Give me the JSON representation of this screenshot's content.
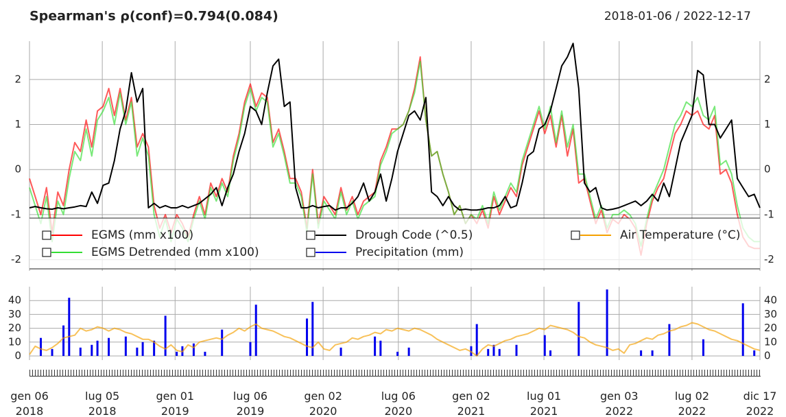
{
  "chart_data": [
    {
      "type": "line",
      "title": "Spearman's ρ(conf)=0.794(0.084)",
      "subtitle": "2018-01-06 / 2022-12-17",
      "x": [
        "2018-01-06",
        "2018-01-20",
        "2018-02-03",
        "2018-02-17",
        "2018-03-03",
        "2018-03-17",
        "2018-03-31",
        "2018-04-14",
        "2018-04-28",
        "2018-05-12",
        "2018-05-26",
        "2018-06-09",
        "2018-06-23",
        "2018-07-07",
        "2018-07-21",
        "2018-08-04",
        "2018-08-18",
        "2018-09-01",
        "2018-09-15",
        "2018-09-29",
        "2018-10-13",
        "2018-10-27",
        "2018-11-10",
        "2018-11-24",
        "2018-12-08",
        "2018-12-22",
        "2019-01-05",
        "2019-01-19",
        "2019-02-02",
        "2019-02-16",
        "2019-03-02",
        "2019-03-16",
        "2019-03-30",
        "2019-04-13",
        "2019-04-27",
        "2019-05-11",
        "2019-05-25",
        "2019-06-08",
        "2019-06-22",
        "2019-07-06",
        "2019-07-20",
        "2019-08-03",
        "2019-08-17",
        "2019-08-31",
        "2019-09-14",
        "2019-09-28",
        "2019-10-12",
        "2019-10-26",
        "2019-11-09",
        "2019-11-23",
        "2019-12-07",
        "2019-12-21",
        "2020-01-04",
        "2020-01-18",
        "2020-02-01",
        "2020-02-15",
        "2020-02-29",
        "2020-03-14",
        "2020-03-28",
        "2020-04-11",
        "2020-04-25",
        "2020-05-09",
        "2020-05-23",
        "2020-06-06",
        "2020-06-20",
        "2020-07-04",
        "2020-07-18",
        "2020-08-01",
        "2020-08-15",
        "2020-08-29",
        "2020-09-12",
        "2020-09-26",
        "2020-10-10",
        "2020-10-24",
        "2020-11-07",
        "2020-11-21",
        "2020-12-05",
        "2020-12-19",
        "2021-01-02",
        "2021-01-16",
        "2021-01-30",
        "2021-02-13",
        "2021-02-27",
        "2021-03-13",
        "2021-03-27",
        "2021-04-10",
        "2021-04-24",
        "2021-05-08",
        "2021-05-22",
        "2021-06-05",
        "2021-06-19",
        "2021-07-03",
        "2021-07-17",
        "2021-07-31",
        "2021-08-14",
        "2021-08-28",
        "2021-09-11",
        "2021-09-25",
        "2021-10-09",
        "2021-10-23",
        "2021-11-06",
        "2021-11-20",
        "2021-12-04",
        "2021-12-18",
        "2022-01-01",
        "2022-01-15",
        "2022-01-29",
        "2022-02-12",
        "2022-02-26",
        "2022-03-12",
        "2022-03-26",
        "2022-04-09",
        "2022-04-23",
        "2022-05-07",
        "2022-05-21",
        "2022-06-04",
        "2022-06-18",
        "2022-07-02",
        "2022-07-16",
        "2022-07-30",
        "2022-08-13",
        "2022-08-27",
        "2022-09-10",
        "2022-09-24",
        "2022-10-08",
        "2022-10-22",
        "2022-11-05",
        "2022-11-19",
        "2022-12-03",
        "2022-12-17"
      ],
      "xlim": [
        "2018-01-06",
        "2022-12-17"
      ],
      "ylim": [
        -2.25,
        2.85
      ],
      "yticks": [
        -2,
        -1,
        0,
        1,
        2
      ],
      "grid": true,
      "series": [
        {
          "name": "EGMS (mm x100)",
          "color": "#ff0000",
          "values": [
            -0.2,
            -0.6,
            -1.0,
            -0.4,
            -1.4,
            -0.5,
            -0.8,
            0.0,
            0.6,
            0.4,
            1.1,
            0.5,
            1.3,
            1.4,
            1.8,
            1.2,
            1.8,
            1.1,
            1.6,
            0.5,
            0.8,
            0.5,
            -0.8,
            -1.3,
            -1.0,
            -1.4,
            -1.0,
            -1.2,
            -1.5,
            -1.0,
            -0.6,
            -1.0,
            -0.3,
            -0.6,
            -0.2,
            -0.5,
            0.3,
            0.8,
            1.5,
            1.9,
            1.4,
            1.7,
            1.6,
            0.6,
            0.9,
            0.4,
            -0.2,
            -0.2,
            -0.5,
            -1.3,
            0.0,
            -1.2,
            -0.6,
            -0.8,
            -1.0,
            -0.4,
            -0.9,
            -0.6,
            -1.0,
            -0.7,
            -0.6,
            -0.5,
            0.2,
            0.5,
            0.9,
            0.9,
            1.0,
            1.3,
            1.8,
            2.5,
            1.1,
            0.3,
            0.4,
            -0.1,
            -0.5,
            -1.0,
            -0.8,
            -1.2,
            -1.0,
            -1.2,
            -0.9,
            -1.3,
            -0.6,
            -1.0,
            -0.7,
            -0.4,
            -0.6,
            0.1,
            0.5,
            0.9,
            1.3,
            0.8,
            1.2,
            0.5,
            1.2,
            0.3,
            0.9,
            -0.3,
            -0.2,
            -0.7,
            -1.2,
            -0.9,
            -1.4,
            -1.1,
            -1.2,
            -1.0,
            -1.1,
            -1.3,
            -1.9,
            -1.2,
            -0.7,
            -0.4,
            -0.2,
            0.3,
            0.8,
            1.0,
            1.3,
            1.2,
            1.3,
            1.0,
            0.9,
            1.2,
            -0.1,
            0.0,
            -0.3,
            -1.0,
            -1.5,
            -1.7,
            -1.75,
            -1.75
          ]
        },
        {
          "name": "EGMS Detrended (mm x100)",
          "color": "#33dd33",
          "values": [
            -0.4,
            -0.8,
            -1.2,
            -0.6,
            -1.6,
            -0.7,
            -1.0,
            -0.2,
            0.4,
            0.2,
            0.9,
            0.3,
            1.1,
            1.3,
            1.6,
            1.0,
            1.7,
            1.0,
            1.5,
            0.3,
            0.7,
            0.3,
            -1.0,
            -1.5,
            -1.1,
            -1.6,
            -1.1,
            -1.3,
            -1.6,
            -1.1,
            -0.7,
            -1.1,
            -0.4,
            -0.7,
            -0.3,
            -0.6,
            0.2,
            0.7,
            1.4,
            1.8,
            1.3,
            1.6,
            1.5,
            0.5,
            0.8,
            0.3,
            -0.3,
            -0.3,
            -0.6,
            -1.4,
            -0.1,
            -1.3,
            -0.7,
            -0.9,
            -1.1,
            -0.5,
            -1.0,
            -0.7,
            -1.1,
            -0.8,
            -0.7,
            -0.6,
            0.1,
            0.4,
            0.8,
            0.9,
            1.0,
            1.3,
            1.7,
            2.4,
            1.1,
            0.3,
            0.4,
            -0.1,
            -0.5,
            -1.0,
            -0.8,
            -1.2,
            -1.0,
            -1.1,
            -0.8,
            -1.2,
            -0.5,
            -0.9,
            -0.6,
            -0.3,
            -0.5,
            0.2,
            0.6,
            1.0,
            1.4,
            0.9,
            1.4,
            0.6,
            1.3,
            0.5,
            1.0,
            -0.1,
            -0.1,
            -0.6,
            -1.1,
            -0.8,
            -1.3,
            -1.0,
            -1.0,
            -0.9,
            -1.0,
            -1.2,
            -1.7,
            -1.1,
            -0.6,
            -0.3,
            0.0,
            0.5,
            1.0,
            1.2,
            1.5,
            1.4,
            1.6,
            1.2,
            1.1,
            1.4,
            0.1,
            0.2,
            -0.1,
            -0.8,
            -1.3,
            -1.5,
            -1.6,
            -1.6
          ]
        },
        {
          "name": "Drough Code (^0.5)",
          "color": "#000000",
          "values": [
            -0.85,
            -0.82,
            -0.85,
            -0.87,
            -0.88,
            -0.85,
            -0.87,
            -0.85,
            -0.83,
            -0.8,
            -0.82,
            -0.5,
            -0.75,
            -0.35,
            -0.3,
            0.2,
            0.9,
            1.3,
            2.15,
            1.5,
            1.8,
            -0.85,
            -0.75,
            -0.85,
            -0.8,
            -0.85,
            -0.85,
            -0.8,
            -0.85,
            -0.8,
            -0.75,
            -0.65,
            -0.55,
            -0.4,
            -0.8,
            -0.4,
            -0.1,
            0.4,
            0.8,
            1.4,
            1.3,
            1.0,
            1.7,
            2.3,
            2.45,
            1.4,
            1.5,
            -0.4,
            -0.85,
            -0.85,
            -0.8,
            -0.85,
            -0.82,
            -0.8,
            -0.9,
            -0.85,
            -0.85,
            -0.75,
            -0.6,
            -0.3,
            -0.7,
            -0.5,
            -0.1,
            -0.7,
            -0.2,
            0.4,
            0.8,
            1.2,
            1.3,
            1.1,
            1.6,
            -0.5,
            -0.6,
            -0.8,
            -0.6,
            -0.8,
            -0.9,
            -0.88,
            -0.9,
            -0.9,
            -0.88,
            -0.85,
            -0.85,
            -0.8,
            -0.6,
            -0.85,
            -0.8,
            -0.3,
            0.3,
            0.4,
            0.9,
            1.0,
            1.3,
            1.8,
            2.3,
            2.5,
            2.8,
            1.8,
            -0.3,
            -0.5,
            -0.4,
            -0.85,
            -0.9,
            -0.88,
            -0.85,
            -0.8,
            -0.75,
            -0.7,
            -0.8,
            -0.7,
            -0.55,
            -0.7,
            -0.3,
            -0.6,
            0.0,
            0.6,
            0.9,
            1.2,
            2.2,
            2.1,
            1.0,
            1.0,
            0.7,
            0.9,
            1.1,
            -0.2,
            -0.4,
            -0.6,
            -0.55,
            -0.85
          ]
        }
      ]
    },
    {
      "type": "bar",
      "x": [
        "2018-01-06",
        "2018-01-20",
        "2018-02-03",
        "2018-02-17",
        "2018-03-03",
        "2018-03-17",
        "2018-03-31",
        "2018-04-14",
        "2018-04-28",
        "2018-05-12",
        "2018-05-26",
        "2018-06-09",
        "2018-06-23",
        "2018-07-07",
        "2018-07-21",
        "2018-08-04",
        "2018-08-18",
        "2018-09-01",
        "2018-09-15",
        "2018-09-29",
        "2018-10-13",
        "2018-10-27",
        "2018-11-10",
        "2018-11-24",
        "2018-12-08",
        "2018-12-22",
        "2019-01-05",
        "2019-01-19",
        "2019-02-02",
        "2019-02-16",
        "2019-03-02",
        "2019-03-16",
        "2019-03-30",
        "2019-04-13",
        "2019-04-27",
        "2019-05-11",
        "2019-05-25",
        "2019-06-08",
        "2019-06-22",
        "2019-07-06",
        "2019-07-20",
        "2019-08-03",
        "2019-08-17",
        "2019-08-31",
        "2019-09-14",
        "2019-09-28",
        "2019-10-12",
        "2019-10-26",
        "2019-11-09",
        "2019-11-23",
        "2019-12-07",
        "2019-12-21",
        "2020-01-04",
        "2020-01-18",
        "2020-02-01",
        "2020-02-15",
        "2020-02-29",
        "2020-03-14",
        "2020-03-28",
        "2020-04-11",
        "2020-04-25",
        "2020-05-09",
        "2020-05-23",
        "2020-06-06",
        "2020-06-20",
        "2020-07-04",
        "2020-07-18",
        "2020-08-01",
        "2020-08-15",
        "2020-08-29",
        "2020-09-12",
        "2020-09-26",
        "2020-10-10",
        "2020-10-24",
        "2020-11-07",
        "2020-11-21",
        "2020-12-05",
        "2020-12-19",
        "2021-01-02",
        "2021-01-16",
        "2021-01-30",
        "2021-02-13",
        "2021-02-27",
        "2021-03-13",
        "2021-03-27",
        "2021-04-10",
        "2021-04-24",
        "2021-05-08",
        "2021-05-22",
        "2021-06-05",
        "2021-06-19",
        "2021-07-03",
        "2021-07-17",
        "2021-07-31",
        "2021-08-14",
        "2021-08-28",
        "2021-09-11",
        "2021-09-25",
        "2021-10-09",
        "2021-10-23",
        "2021-11-06",
        "2021-11-20",
        "2021-12-04",
        "2021-12-18",
        "2022-01-01",
        "2022-01-15",
        "2022-01-29",
        "2022-02-12",
        "2022-02-26",
        "2022-03-12",
        "2022-03-26",
        "2022-04-09",
        "2022-04-23",
        "2022-05-07",
        "2022-05-21",
        "2022-06-04",
        "2022-06-18",
        "2022-07-02",
        "2022-07-16",
        "2022-07-30",
        "2022-08-13",
        "2022-08-27",
        "2022-09-10",
        "2022-09-24",
        "2022-10-08",
        "2022-10-22",
        "2022-11-05",
        "2022-11-19",
        "2022-12-03",
        "2022-12-17"
      ],
      "xlim": [
        "2018-01-06",
        "2022-12-17"
      ],
      "ylim": [
        -3,
        50
      ],
      "yticks": [
        0,
        10,
        20,
        30,
        40
      ],
      "grid": true,
      "xticks": [
        {
          "value": "2018-01-06",
          "label": "gen 06\n2018"
        },
        {
          "value": "2018-07-05",
          "label": "lug 05\n2018"
        },
        {
          "value": "2019-01-01",
          "label": "gen 01\n2019"
        },
        {
          "value": "2019-07-06",
          "label": "lug 06\n2019"
        },
        {
          "value": "2020-01-02",
          "label": "gen 02\n2020"
        },
        {
          "value": "2020-07-06",
          "label": "lug 06\n2020"
        },
        {
          "value": "2021-01-02",
          "label": "gen 02\n2021"
        },
        {
          "value": "2021-07-01",
          "label": "lug 01\n2021"
        },
        {
          "value": "2022-01-03",
          "label": "gen 03\n2022"
        },
        {
          "value": "2022-07-02",
          "label": "lug 02\n2022"
        },
        {
          "value": "2022-12-17",
          "label": "dic 17\n2022"
        }
      ],
      "series": [
        {
          "name": "Precipitation (mm)",
          "color": "#0000ee",
          "values": [
            0,
            0,
            13,
            0,
            5,
            0,
            22,
            42,
            0,
            6,
            0,
            8,
            11,
            0,
            13,
            0,
            0,
            14,
            0,
            6,
            10,
            0,
            11,
            0,
            29,
            0,
            3,
            7,
            0,
            9,
            0,
            3,
            0,
            0,
            19,
            0,
            0,
            0,
            0,
            10,
            37,
            0,
            0,
            0,
            0,
            0,
            0,
            0,
            0,
            27,
            39,
            0,
            0,
            0,
            0,
            6,
            0,
            0,
            0,
            0,
            0,
            14,
            11,
            0,
            0,
            3,
            0,
            6,
            0,
            0,
            0,
            0,
            0,
            0,
            0,
            0,
            0,
            0,
            7,
            23,
            0,
            5,
            8,
            5,
            0,
            0,
            8,
            0,
            0,
            0,
            0,
            15,
            4,
            0,
            0,
            0,
            0,
            39,
            0,
            0,
            0,
            0,
            48,
            0,
            0,
            0,
            0,
            0,
            4,
            0,
            4,
            0,
            0,
            23,
            0,
            0,
            0,
            0,
            0,
            12,
            0,
            0,
            0,
            0,
            0,
            0,
            38,
            0,
            4,
            0
          ]
        },
        {
          "name": "Air Temperature (°C)",
          "color": "#f5a000",
          "type": "line",
          "values": [
            1,
            7,
            5,
            4,
            6,
            9,
            13,
            14,
            15,
            20,
            18,
            19,
            21,
            20,
            18,
            20,
            19,
            17,
            16,
            14,
            12,
            12,
            10,
            7,
            5,
            8,
            4,
            3,
            8,
            6,
            10,
            11,
            12,
            13,
            12,
            15,
            17,
            20,
            18,
            21,
            23,
            20,
            19,
            18,
            16,
            14,
            13,
            11,
            9,
            7,
            6,
            10,
            5,
            4,
            8,
            9,
            10,
            13,
            12,
            14,
            15,
            17,
            16,
            19,
            18,
            20,
            19,
            18,
            20,
            19,
            17,
            15,
            12,
            10,
            8,
            6,
            4,
            5,
            3,
            0,
            5,
            8,
            7,
            9,
            11,
            12,
            14,
            15,
            16,
            18,
            20,
            19,
            22,
            21,
            20,
            19,
            17,
            14,
            13,
            10,
            8,
            7,
            6,
            4,
            5,
            2,
            8,
            9,
            11,
            13,
            12,
            15,
            16,
            18,
            19,
            21,
            22,
            24,
            23,
            21,
            19,
            18,
            16,
            14,
            12,
            11,
            9,
            7,
            5,
            4
          ]
        }
      ]
    }
  ]
}
